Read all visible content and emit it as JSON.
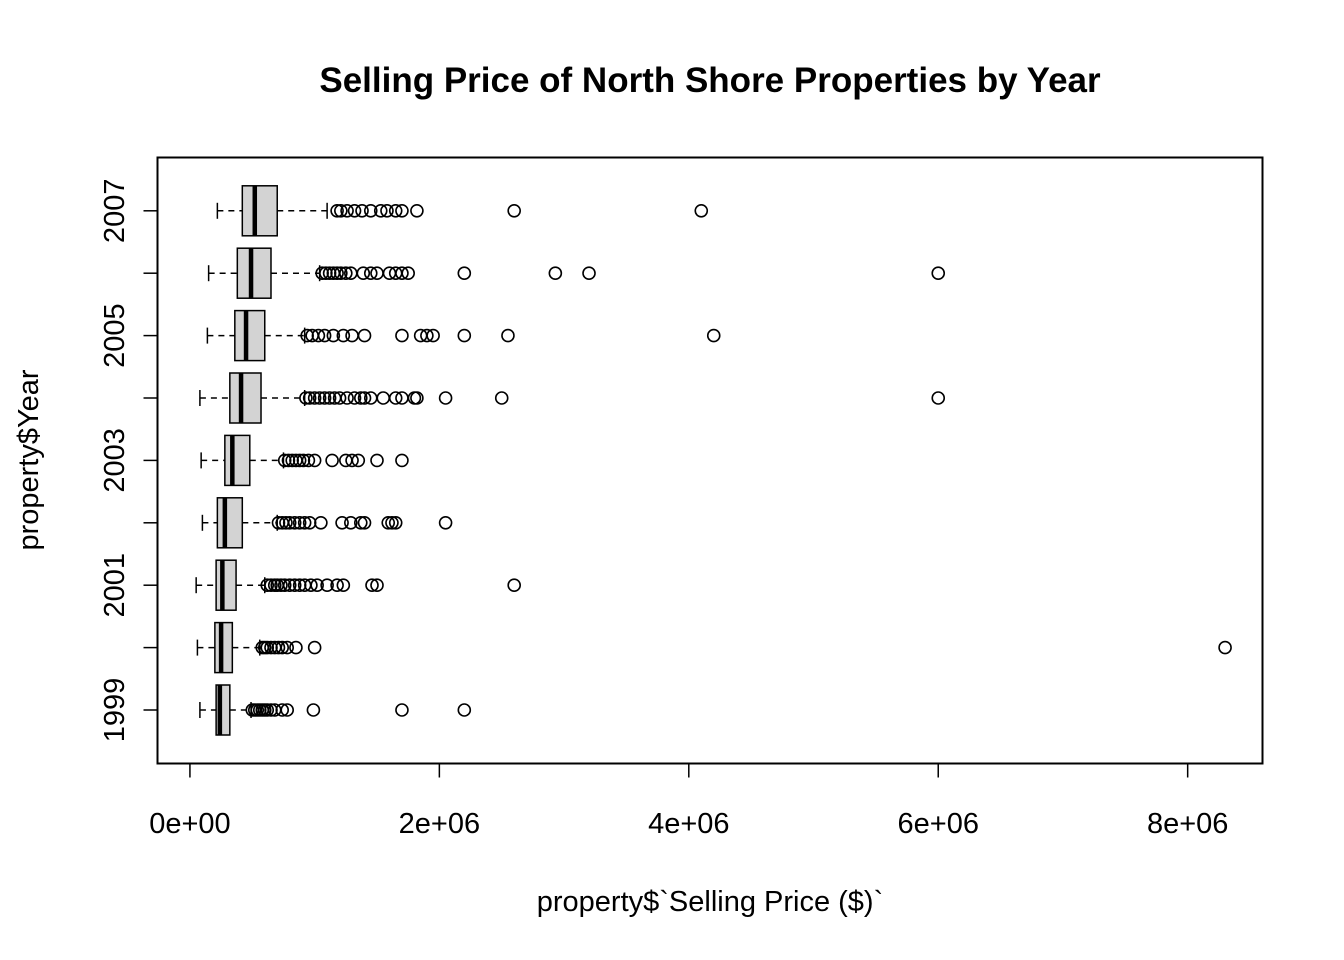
{
  "chart_data": {
    "type": "boxplot",
    "orientation": "horizontal",
    "title": "Selling Price of North Shore Properties by Year",
    "xlabel": "property$`Selling Price ($)`",
    "ylabel": "property$Year",
    "xlim": [
      -260000,
      8600000
    ],
    "x_ticks": [
      0,
      2000000,
      4000000,
      6000000,
      8000000
    ],
    "x_tick_labels": [
      "0e+00",
      "2e+06",
      "4e+06",
      "6e+06",
      "8e+06"
    ],
    "y_tick_labels": [
      "1999",
      "2001",
      "2003",
      "2005",
      "2007"
    ],
    "box_fill": "#d3d3d3",
    "grid": false,
    "series": [
      {
        "category": "1999",
        "stats": {
          "whisker_low": 80000,
          "q1": 210000,
          "median": 240000,
          "q3": 320000,
          "whisker_high": 490000
        },
        "outliers": [
          500000,
          520000,
          540000,
          560000,
          580000,
          600000,
          620000,
          650000,
          680000,
          740000,
          780000,
          990000,
          1700000,
          2200000
        ]
      },
      {
        "category": "2000",
        "stats": {
          "whisker_low": 60000,
          "q1": 200000,
          "median": 250000,
          "q3": 340000,
          "whisker_high": 560000
        },
        "outliers": [
          580000,
          600000,
          620000,
          650000,
          680000,
          710000,
          740000,
          780000,
          850000,
          1000000,
          8300000
        ]
      },
      {
        "category": "2001",
        "stats": {
          "whisker_low": 50000,
          "q1": 210000,
          "median": 260000,
          "q3": 370000,
          "whisker_high": 600000
        },
        "outliers": [
          620000,
          650000,
          680000,
          700000,
          730000,
          760000,
          800000,
          840000,
          880000,
          920000,
          970000,
          1020000,
          1100000,
          1180000,
          1230000,
          1460000,
          1500000,
          2600000
        ]
      },
      {
        "category": "2002",
        "stats": {
          "whisker_low": 100000,
          "q1": 220000,
          "median": 280000,
          "q3": 420000,
          "whisker_high": 700000
        },
        "outliers": [
          710000,
          740000,
          770000,
          800000,
          840000,
          880000,
          920000,
          960000,
          1050000,
          1220000,
          1290000,
          1370000,
          1400000,
          1590000,
          1620000,
          1650000,
          2050000
        ]
      },
      {
        "category": "2003",
        "stats": {
          "whisker_low": 90000,
          "q1": 280000,
          "median": 340000,
          "q3": 480000,
          "whisker_high": 750000
        },
        "outliers": [
          760000,
          790000,
          820000,
          850000,
          880000,
          910000,
          950000,
          1000000,
          1140000,
          1250000,
          1300000,
          1350000,
          1500000,
          1700000
        ]
      },
      {
        "category": "2004",
        "stats": {
          "whisker_low": 80000,
          "q1": 320000,
          "median": 410000,
          "q3": 570000,
          "whisker_high": 920000
        },
        "outliers": [
          930000,
          960000,
          1000000,
          1040000,
          1080000,
          1120000,
          1160000,
          1200000,
          1260000,
          1320000,
          1370000,
          1400000,
          1450000,
          1550000,
          1650000,
          1700000,
          1800000,
          1820000,
          2050000,
          2500000,
          6000000
        ]
      },
      {
        "category": "2005",
        "stats": {
          "whisker_low": 140000,
          "q1": 360000,
          "median": 450000,
          "q3": 600000,
          "whisker_high": 920000
        },
        "outliers": [
          940000,
          980000,
          1030000,
          1080000,
          1150000,
          1230000,
          1300000,
          1400000,
          1700000,
          1850000,
          1900000,
          1950000,
          2200000,
          2550000,
          4200000
        ]
      },
      {
        "category": "2006",
        "stats": {
          "whisker_low": 150000,
          "q1": 380000,
          "median": 490000,
          "q3": 650000,
          "whisker_high": 1040000
        },
        "outliers": [
          1060000,
          1090000,
          1120000,
          1150000,
          1180000,
          1210000,
          1250000,
          1290000,
          1390000,
          1450000,
          1500000,
          1600000,
          1650000,
          1700000,
          1750000,
          2200000,
          2930000,
          3200000,
          6000000
        ]
      },
      {
        "category": "2007",
        "stats": {
          "whisker_low": 220000,
          "q1": 420000,
          "median": 520000,
          "q3": 700000,
          "whisker_high": 1100000
        },
        "outliers": [
          1180000,
          1210000,
          1260000,
          1320000,
          1380000,
          1450000,
          1530000,
          1580000,
          1650000,
          1700000,
          1820000,
          2600000,
          4100000
        ]
      }
    ]
  }
}
